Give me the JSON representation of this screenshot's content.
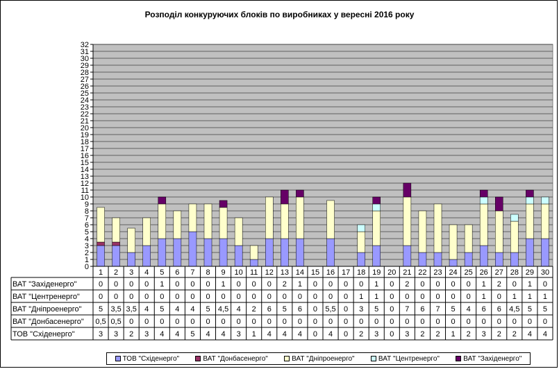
{
  "chart_data": {
    "type": "bar",
    "stacked": true,
    "title": "Розподіл конкуруючих  блоків по виробниках  у вересні 2016 року",
    "categories": [
      "1",
      "2",
      "3",
      "4",
      "5",
      "6",
      "7",
      "8",
      "9",
      "10",
      "11",
      "12",
      "13",
      "14",
      "15",
      "16",
      "17",
      "18",
      "19",
      "20",
      "21",
      "22",
      "23",
      "24",
      "25",
      "26",
      "27",
      "28",
      "29",
      "30"
    ],
    "ylim": [
      0,
      32
    ],
    "yticks": [
      0,
      1,
      2,
      3,
      4,
      5,
      6,
      7,
      8,
      9,
      10,
      11,
      12,
      13,
      14,
      15,
      16,
      17,
      18,
      19,
      20,
      21,
      22,
      23,
      24,
      25,
      26,
      27,
      28,
      29,
      30,
      31,
      32
    ],
    "grid": true,
    "legend_position": "bottom",
    "series": [
      {
        "name": "ТОВ \"Східенерго\"",
        "color": "#9999ff",
        "values": [
          3,
          3,
          2,
          3,
          4,
          4,
          5,
          4,
          4,
          3,
          1,
          4,
          4,
          4,
          0,
          4,
          0,
          2,
          3,
          0,
          3,
          2,
          2,
          1,
          2,
          3,
          2,
          2,
          4,
          4
        ],
        "labels": [
          "3",
          "3",
          "2",
          "3",
          "4",
          "4",
          "5",
          "4",
          "4",
          "3",
          "1",
          "4",
          "4",
          "4",
          "0",
          "4",
          "0",
          "2",
          "3",
          "0",
          "3",
          "2",
          "2",
          "1",
          "2",
          "3",
          "2",
          "2",
          "4",
          "4"
        ]
      },
      {
        "name": "ВАТ \"Донбасенерго\"",
        "color": "#993366",
        "values": [
          0.5,
          0.5,
          0,
          0,
          0,
          0,
          0,
          0,
          0,
          0,
          0,
          0,
          0,
          0,
          0,
          0,
          0,
          0,
          0,
          0,
          0,
          0,
          0,
          0,
          0,
          0,
          0,
          0,
          0,
          0
        ],
        "labels": [
          "0,5",
          "0,5",
          "0",
          "0",
          "0",
          "0",
          "0",
          "0",
          "0",
          "0",
          "0",
          "0",
          "0",
          "0",
          "0",
          "0",
          "0",
          "0",
          "0",
          "0",
          "0",
          "0",
          "0",
          "0",
          "0",
          "0",
          "0",
          "0",
          "0",
          "0"
        ]
      },
      {
        "name": "ВАТ \"Дніпроенерго\"",
        "color": "#ffffcc",
        "values": [
          5,
          3.5,
          3.5,
          4,
          5,
          4,
          4,
          5,
          4.5,
          4,
          2,
          6,
          5,
          6,
          0,
          5.5,
          0,
          3,
          5,
          0,
          7,
          6,
          7,
          5,
          4,
          6,
          6,
          4.5,
          5,
          5
        ],
        "labels": [
          "5",
          "3,5",
          "3,5",
          "4",
          "5",
          "4",
          "4",
          "5",
          "4,5",
          "4",
          "2",
          "6",
          "5",
          "6",
          "0",
          "5,5",
          "0",
          "3",
          "5",
          "0",
          "7",
          "6",
          "7",
          "5",
          "4",
          "6",
          "6",
          "4,5",
          "5",
          "5"
        ]
      },
      {
        "name": "ВАТ \"Центренерго\"",
        "color": "#ccffff",
        "values": [
          0,
          0,
          0,
          0,
          0,
          0,
          0,
          0,
          0,
          0,
          0,
          0,
          0,
          0,
          0,
          0,
          0,
          1,
          1,
          0,
          0,
          0,
          0,
          0,
          0,
          1,
          0,
          1,
          1,
          1
        ],
        "labels": [
          "0",
          "0",
          "0",
          "0",
          "0",
          "0",
          "0",
          "0",
          "0",
          "0",
          "0",
          "0",
          "0",
          "0",
          "0",
          "0",
          "0",
          "1",
          "1",
          "0",
          "0",
          "0",
          "0",
          "0",
          "0",
          "1",
          "0",
          "1",
          "1",
          "1"
        ]
      },
      {
        "name": "ВАТ \"Західенерго\"",
        "color": "#660066",
        "values": [
          0,
          0,
          0,
          0,
          1,
          0,
          0,
          0,
          1,
          0,
          0,
          0,
          2,
          1,
          0,
          0,
          0,
          0,
          1,
          0,
          2,
          0,
          0,
          0,
          0,
          1,
          2,
          0,
          1,
          0
        ],
        "labels": [
          "0",
          "0",
          "0",
          "0",
          "1",
          "0",
          "0",
          "0",
          "1",
          "0",
          "0",
          "0",
          "2",
          "1",
          "0",
          "0",
          "0",
          "0",
          "1",
          "0",
          "2",
          "0",
          "0",
          "0",
          "0",
          "1",
          "2",
          "0",
          "1",
          "0"
        ]
      }
    ],
    "table_rows": [
      {
        "label": "ВАТ \"Західенерго\"",
        "series_index": 4
      },
      {
        "label": "ВАТ \"Центренерго\"",
        "series_index": 3
      },
      {
        "label": "ВАТ \"Дніпроенерго\"",
        "series_index": 2
      },
      {
        "label": "ВАТ \"Донбасенерго\"",
        "series_index": 1
      },
      {
        "label": "ТОВ \"Східенерго\"",
        "series_index": 0
      }
    ],
    "plot_background": "#c0c0c0"
  }
}
